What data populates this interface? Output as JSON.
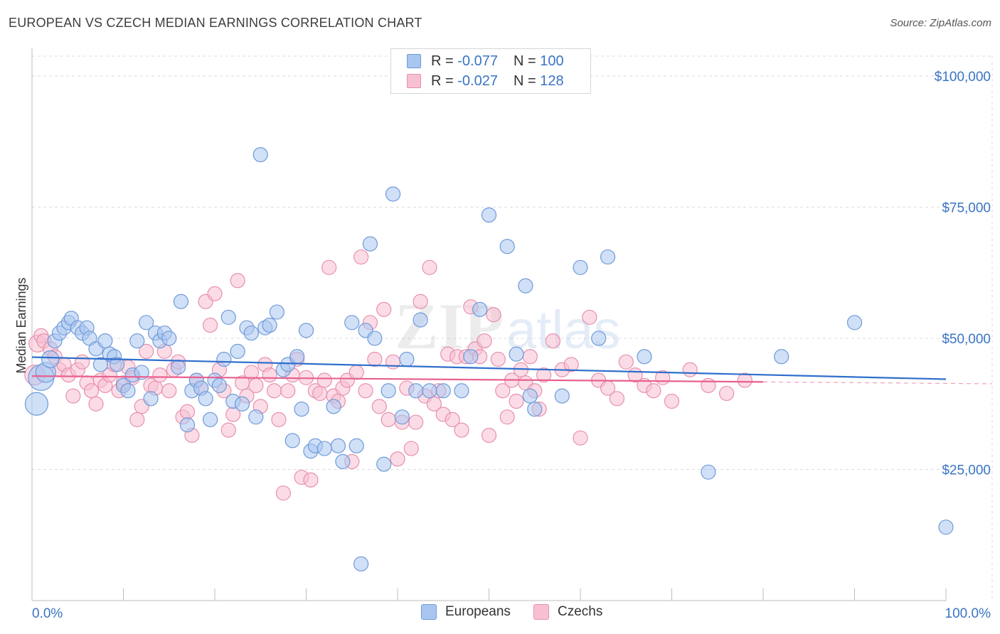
{
  "header": {
    "title": "EUROPEAN VS CZECH MEDIAN EARNINGS CORRELATION CHART",
    "source": "Source: ZipAtlas.com"
  },
  "legend_top": {
    "rows": [
      {
        "r_label": "R = ",
        "r_value": "-0.077",
        "n_label": "N = ",
        "n_value": "100",
        "color": "#a9c6f0",
        "border": "#6f9ad8"
      },
      {
        "r_label": "R = ",
        "r_value": "-0.027",
        "n_label": "N = ",
        "n_value": "128",
        "color": "#f7bfd2",
        "border": "#e88fad"
      }
    ]
  },
  "legend_bottom": {
    "items": [
      {
        "label": "Europeans",
        "color": "#a9c6f0",
        "border": "#6f9ad8"
      },
      {
        "label": "Czechs",
        "color": "#f7bfd2",
        "border": "#e88fad"
      }
    ]
  },
  "colors": {
    "blue_fill": "#a9c6f0",
    "blue_stroke": "#6f9ad8",
    "blue_line": "#2f6fcc",
    "pink_fill": "#f7bfd2",
    "pink_stroke": "#e88fad",
    "pink_line": "#e8608f",
    "axis_label": "#3a74c4",
    "grid": "#dcdcdc"
  },
  "chart_data": {
    "type": "scatter",
    "title": "EUROPEAN VS CZECH MEDIAN EARNINGS CORRELATION CHART",
    "xlabel": "",
    "ylabel": "Median Earnings",
    "xlim": [
      0,
      100
    ],
    "ylim": [
      0,
      105000
    ],
    "x_tick_labels": [
      "0.0%",
      "100.0%"
    ],
    "y_ticks": [
      25000,
      50000,
      75000,
      100000
    ],
    "y_tick_labels": [
      "$25,000",
      "$50,000",
      "$75,000",
      "$100,000"
    ],
    "grid": true,
    "legend_position": "top-center",
    "watermark": "ZIPatlas",
    "series": [
      {
        "name": "Europeans",
        "r": -0.077,
        "n": 100,
        "trend": {
          "x0": 0,
          "y0": 46400,
          "x1": 100,
          "y1": 42200,
          "dashed_from": null
        },
        "points": [
          [
            0.5,
            37500,
            16
          ],
          [
            1,
            42500,
            18
          ],
          [
            1.5,
            43500,
            14
          ],
          [
            2,
            46000,
            12
          ],
          [
            2.5,
            49500,
            10
          ],
          [
            3,
            51000,
            10
          ],
          [
            3.5,
            52000,
            10
          ],
          [
            4,
            53000,
            10
          ],
          [
            4.3,
            53800,
            10
          ],
          [
            5,
            52000,
            10
          ],
          [
            5.5,
            51000,
            10
          ],
          [
            6,
            52000,
            10
          ],
          [
            6.3,
            50000,
            10
          ],
          [
            7,
            48000,
            10
          ],
          [
            7.5,
            45000,
            10
          ],
          [
            8,
            49500,
            10
          ],
          [
            8.5,
            47000,
            10
          ],
          [
            9,
            46500,
            10
          ],
          [
            9.3,
            45000,
            10
          ],
          [
            10,
            41000,
            10
          ],
          [
            10.5,
            40000,
            10
          ],
          [
            11,
            43000,
            10
          ],
          [
            11.5,
            49500,
            10
          ],
          [
            12,
            43500,
            10
          ],
          [
            12.5,
            53000,
            10
          ],
          [
            13,
            38500,
            10
          ],
          [
            13.5,
            51000,
            10
          ],
          [
            14,
            49500,
            10
          ],
          [
            14.5,
            51000,
            10
          ],
          [
            15,
            50000,
            10
          ],
          [
            16,
            44500,
            10
          ],
          [
            16.3,
            57000,
            10
          ],
          [
            17,
            33500,
            10
          ],
          [
            17.5,
            40000,
            10
          ],
          [
            18,
            42000,
            10
          ],
          [
            18.5,
            40500,
            10
          ],
          [
            19,
            38500,
            10
          ],
          [
            19.5,
            34500,
            10
          ],
          [
            20,
            42000,
            10
          ],
          [
            20.5,
            41000,
            10
          ],
          [
            21,
            46000,
            10
          ],
          [
            21.5,
            54000,
            10
          ],
          [
            22,
            38000,
            10
          ],
          [
            22.5,
            47500,
            10
          ],
          [
            23,
            37500,
            10
          ],
          [
            23.5,
            52000,
            10
          ],
          [
            24,
            51000,
            10
          ],
          [
            24.5,
            35000,
            10
          ],
          [
            25,
            85000,
            10
          ],
          [
            25.5,
            52000,
            10
          ],
          [
            26,
            52500,
            10
          ],
          [
            26.8,
            55000,
            10
          ],
          [
            27.5,
            44000,
            10
          ],
          [
            28,
            45000,
            10
          ],
          [
            28.5,
            30500,
            10
          ],
          [
            29,
            46500,
            10
          ],
          [
            29.5,
            36500,
            10
          ],
          [
            30,
            51500,
            10
          ],
          [
            30.5,
            28500,
            10
          ],
          [
            31,
            29500,
            10
          ],
          [
            32,
            29000,
            10
          ],
          [
            33,
            37000,
            10
          ],
          [
            33.5,
            29500,
            10
          ],
          [
            34,
            26500,
            10
          ],
          [
            35,
            53000,
            10
          ],
          [
            35.5,
            29500,
            10
          ],
          [
            36,
            7000,
            10
          ],
          [
            36.5,
            51500,
            10
          ],
          [
            37,
            68000,
            10
          ],
          [
            37.5,
            50000,
            10
          ],
          [
            38.5,
            26000,
            10
          ],
          [
            39,
            40000,
            10
          ],
          [
            39.5,
            77500,
            10
          ],
          [
            40.5,
            35000,
            10
          ],
          [
            41,
            46000,
            10
          ],
          [
            42,
            40000,
            10
          ],
          [
            42.5,
            53500,
            10
          ],
          [
            43.5,
            40000,
            10
          ],
          [
            45,
            40000,
            10
          ],
          [
            47,
            40000,
            10
          ],
          [
            48,
            46500,
            10
          ],
          [
            49,
            55500,
            10
          ],
          [
            50,
            73500,
            10
          ],
          [
            52,
            67500,
            10
          ],
          [
            53,
            47000,
            10
          ],
          [
            54,
            60000,
            10
          ],
          [
            54.5,
            39000,
            10
          ],
          [
            55,
            36500,
            10
          ],
          [
            58,
            39000,
            10
          ],
          [
            60,
            63500,
            10
          ],
          [
            62,
            50000,
            10
          ],
          [
            63,
            65500,
            10
          ],
          [
            67,
            46500,
            10
          ],
          [
            74,
            24500,
            10
          ],
          [
            82,
            46500,
            10
          ],
          [
            90,
            53000,
            10
          ],
          [
            100,
            14000,
            10
          ]
        ]
      },
      {
        "name": "Czechs",
        "r": -0.027,
        "n": 128,
        "trend": {
          "x0": 0,
          "y0": 42800,
          "x1": 100,
          "y1": 41400,
          "dashed_from": 80
        },
        "points": [
          [
            0.3,
            43000,
            14
          ],
          [
            0.6,
            49000,
            12
          ],
          [
            1,
            50500,
            10
          ],
          [
            1.3,
            49500,
            10
          ],
          [
            2,
            48000,
            10
          ],
          [
            2.5,
            46500,
            10
          ],
          [
            3,
            44000,
            10
          ],
          [
            3.5,
            45000,
            10
          ],
          [
            4,
            43000,
            10
          ],
          [
            4.5,
            39000,
            10
          ],
          [
            5,
            44000,
            10
          ],
          [
            5.5,
            45500,
            10
          ],
          [
            6,
            41500,
            10
          ],
          [
            6.5,
            40000,
            10
          ],
          [
            7,
            37500,
            10
          ],
          [
            7.5,
            42000,
            10
          ],
          [
            8,
            41000,
            10
          ],
          [
            8.5,
            43000,
            10
          ],
          [
            9,
            45000,
            10
          ],
          [
            9.5,
            40000,
            10
          ],
          [
            10,
            41500,
            10
          ],
          [
            10.5,
            44500,
            10
          ],
          [
            11,
            42500,
            10
          ],
          [
            11.5,
            34500,
            10
          ],
          [
            12,
            37000,
            10
          ],
          [
            12.5,
            47500,
            10
          ],
          [
            13,
            41000,
            10
          ],
          [
            13.5,
            40500,
            10
          ],
          [
            14,
            43000,
            10
          ],
          [
            14.5,
            47500,
            10
          ],
          [
            15,
            40000,
            10
          ],
          [
            15.5,
            44000,
            10
          ],
          [
            16,
            45500,
            10
          ],
          [
            16.5,
            35000,
            10
          ],
          [
            17,
            36000,
            10
          ],
          [
            17.5,
            31500,
            10
          ],
          [
            18,
            42000,
            10
          ],
          [
            18.5,
            40500,
            10
          ],
          [
            19,
            57000,
            10
          ],
          [
            19.5,
            52500,
            10
          ],
          [
            20,
            58500,
            10
          ],
          [
            20.5,
            44000,
            10
          ],
          [
            21,
            40000,
            10
          ],
          [
            21.5,
            32500,
            10
          ],
          [
            22,
            35500,
            10
          ],
          [
            22.5,
            61000,
            10
          ],
          [
            23,
            41500,
            10
          ],
          [
            23.5,
            39000,
            10
          ],
          [
            24,
            43500,
            10
          ],
          [
            24.5,
            41000,
            10
          ],
          [
            25,
            37000,
            10
          ],
          [
            25.5,
            45000,
            10
          ],
          [
            26,
            43000,
            10
          ],
          [
            26.5,
            40000,
            10
          ],
          [
            27,
            34500,
            10
          ],
          [
            27.5,
            20500,
            10
          ],
          [
            28,
            40000,
            10
          ],
          [
            28.5,
            43000,
            10
          ],
          [
            29,
            46000,
            10
          ],
          [
            29.5,
            23500,
            10
          ],
          [
            30,
            42500,
            10
          ],
          [
            30.5,
            23000,
            10
          ],
          [
            31,
            40000,
            10
          ],
          [
            31.5,
            39500,
            10
          ],
          [
            32,
            42000,
            10
          ],
          [
            32.5,
            63500,
            10
          ],
          [
            33,
            39000,
            10
          ],
          [
            33.5,
            38000,
            10
          ],
          [
            34,
            40500,
            10
          ],
          [
            34.5,
            42000,
            10
          ],
          [
            35,
            26500,
            10
          ],
          [
            35.5,
            43500,
            10
          ],
          [
            36,
            65500,
            10
          ],
          [
            36.5,
            40000,
            10
          ],
          [
            37,
            53000,
            10
          ],
          [
            37.5,
            46000,
            10
          ],
          [
            38,
            37000,
            10
          ],
          [
            38.5,
            55500,
            10
          ],
          [
            39,
            34500,
            10
          ],
          [
            39.5,
            45500,
            10
          ],
          [
            40,
            27000,
            10
          ],
          [
            40.5,
            34000,
            10
          ],
          [
            41,
            40500,
            10
          ],
          [
            41.5,
            29000,
            10
          ],
          [
            42,
            34000,
            10
          ],
          [
            42.5,
            57000,
            10
          ],
          [
            43,
            39000,
            10
          ],
          [
            43.5,
            63500,
            10
          ],
          [
            44,
            37500,
            10
          ],
          [
            44.5,
            40000,
            10
          ],
          [
            45,
            35500,
            10
          ],
          [
            45.5,
            47000,
            10
          ],
          [
            46,
            34500,
            10
          ],
          [
            46.5,
            46500,
            10
          ],
          [
            47,
            32500,
            10
          ],
          [
            47.5,
            46500,
            10
          ],
          [
            48,
            56000,
            10
          ],
          [
            48.5,
            48000,
            10
          ],
          [
            49,
            46500,
            10
          ],
          [
            49.5,
            49500,
            10
          ],
          [
            50,
            31500,
            10
          ],
          [
            50.5,
            54500,
            10
          ],
          [
            51,
            46000,
            10
          ],
          [
            51.5,
            40000,
            10
          ],
          [
            52,
            35000,
            10
          ],
          [
            52.5,
            42000,
            10
          ],
          [
            53,
            38000,
            10
          ],
          [
            53.5,
            44000,
            10
          ],
          [
            54,
            41500,
            10
          ],
          [
            54.5,
            46500,
            10
          ],
          [
            55,
            40000,
            10
          ],
          [
            55.5,
            36500,
            10
          ],
          [
            56,
            43000,
            10
          ],
          [
            57,
            49500,
            10
          ],
          [
            58,
            44000,
            10
          ],
          [
            59,
            45000,
            10
          ],
          [
            60,
            31000,
            10
          ],
          [
            61,
            54000,
            10
          ],
          [
            62,
            42000,
            10
          ],
          [
            63,
            40500,
            10
          ],
          [
            64,
            38500,
            10
          ],
          [
            65,
            45500,
            10
          ],
          [
            66,
            43000,
            10
          ],
          [
            67,
            41000,
            10
          ],
          [
            68,
            40000,
            10
          ],
          [
            69,
            42500,
            10
          ],
          [
            70,
            38000,
            10
          ],
          [
            72,
            44000,
            10
          ],
          [
            74,
            41000,
            10
          ],
          [
            76,
            39500,
            10
          ],
          [
            78,
            42000,
            10
          ]
        ]
      }
    ]
  }
}
